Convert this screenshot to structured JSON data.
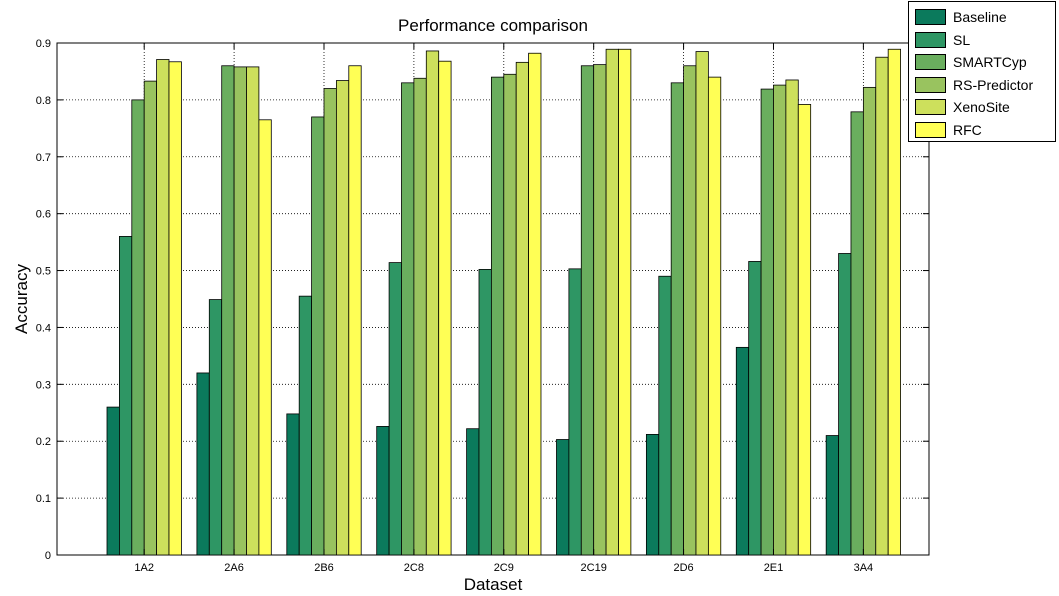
{
  "chart_data": {
    "type": "bar",
    "title": "Performance comparison",
    "xlabel": "Dataset",
    "ylabel": "Accuracy",
    "ylim": [
      0,
      0.9
    ],
    "yticks": [
      "0",
      "0.1",
      "0.2",
      "0.3",
      "0.4",
      "0.5",
      "0.6",
      "0.7",
      "0.8",
      "0.9"
    ],
    "grid": "dotted",
    "legend_position": "top-right",
    "categories": [
      "1A2",
      "2A6",
      "2B6",
      "2C8",
      "2C9",
      "2C19",
      "2D6",
      "2E1",
      "3A4"
    ],
    "series": [
      {
        "name": "Baseline",
        "color": "#0b7a5c",
        "values": [
          0.26,
          0.32,
          0.248,
          0.226,
          0.222,
          0.203,
          0.212,
          0.365,
          0.21
        ]
      },
      {
        "name": "SL",
        "color": "#2e9664",
        "values": [
          0.56,
          0.449,
          0.455,
          0.514,
          0.502,
          0.503,
          0.49,
          0.516,
          0.53
        ]
      },
      {
        "name": "SMARTCyp",
        "color": "#6aae5e",
        "values": [
          0.8,
          0.86,
          0.77,
          0.83,
          0.84,
          0.86,
          0.83,
          0.819,
          0.779
        ]
      },
      {
        "name": "RS-Predictor",
        "color": "#99c35f",
        "values": [
          0.833,
          0.858,
          0.82,
          0.838,
          0.845,
          0.862,
          0.86,
          0.826,
          0.822
        ]
      },
      {
        "name": "XenoSite",
        "color": "#cde05c",
        "values": [
          0.871,
          0.858,
          0.834,
          0.886,
          0.866,
          0.889,
          0.885,
          0.835,
          0.875
        ]
      },
      {
        "name": "RFC",
        "color": "#ffff55",
        "values": [
          0.867,
          0.765,
          0.86,
          0.868,
          0.882,
          0.889,
          0.84,
          0.792,
          0.889
        ]
      }
    ]
  }
}
